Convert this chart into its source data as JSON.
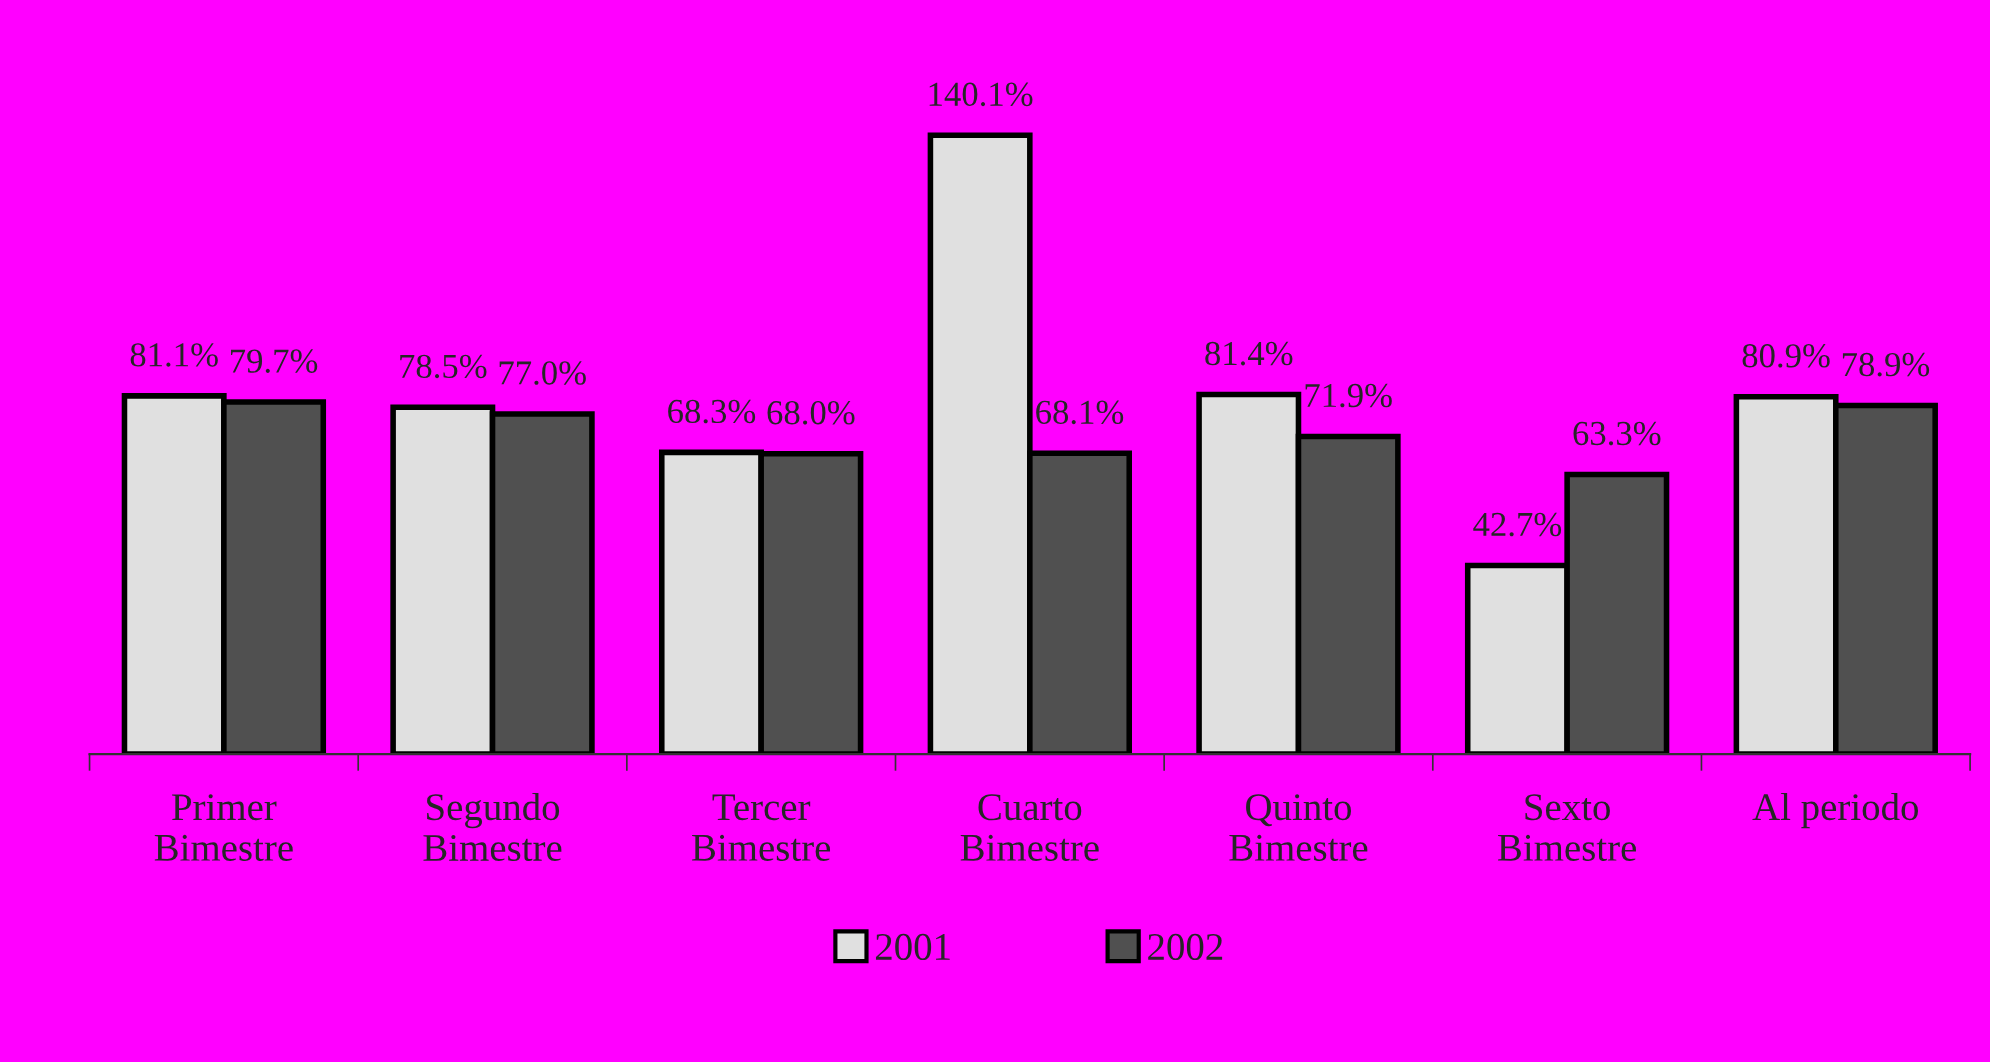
{
  "chart_data": {
    "type": "bar",
    "categories": [
      "Primer\nBimestre",
      "Segundo\nBimestre",
      "Tercer\nBimestre",
      "Cuarto\nBimestre",
      "Quinto\nBimestre",
      "Sexto\nBimestre",
      "Al periodo"
    ],
    "series": [
      {
        "name": "2001",
        "color": "#e0e0e0",
        "values": [
          81.1,
          78.5,
          68.3,
          140.1,
          81.4,
          42.7,
          80.9
        ],
        "value_labels": [
          "81.1%",
          "78.5%",
          "68.3%",
          "140.1%",
          "81.4%",
          "42.7%",
          "80.9%"
        ]
      },
      {
        "name": "2002",
        "color": "#505050",
        "values": [
          79.7,
          77.0,
          68.0,
          68.1,
          71.9,
          63.3,
          78.9
        ],
        "value_labels": [
          "79.7%",
          "77.0%",
          "68.0%",
          "68.1%",
          "71.9%",
          "63.3%",
          "78.9%"
        ]
      }
    ],
    "legend": "bottom",
    "grid": false
  }
}
